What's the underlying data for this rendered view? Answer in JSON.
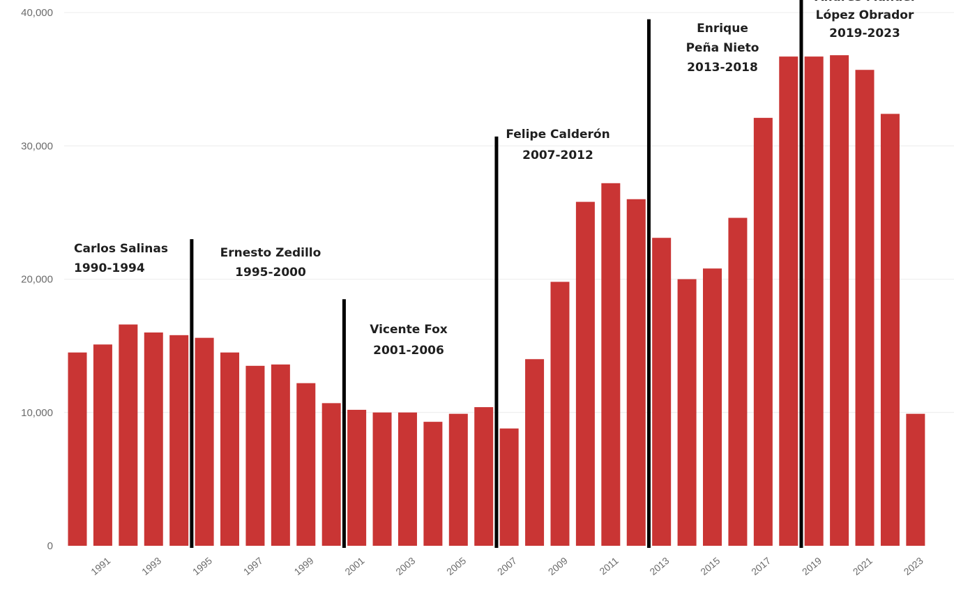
{
  "chart_data": {
    "type": "bar",
    "x": [
      1990,
      1991,
      1992,
      1993,
      1994,
      1995,
      1996,
      1997,
      1998,
      1999,
      2000,
      2001,
      2002,
      2003,
      2004,
      2005,
      2006,
      2007,
      2008,
      2009,
      2010,
      2011,
      2012,
      2013,
      2014,
      2015,
      2016,
      2017,
      2018,
      2019,
      2020,
      2021,
      2022,
      2023
    ],
    "values": [
      14500,
      15100,
      16600,
      16000,
      15800,
      15600,
      14500,
      13500,
      13600,
      12200,
      10700,
      10200,
      10000,
      10000,
      9300,
      9900,
      10400,
      8800,
      14000,
      19800,
      25800,
      27200,
      26000,
      23100,
      20000,
      20800,
      24600,
      32100,
      36700,
      36700,
      36800,
      35700,
      32400,
      9900
    ],
    "x_tick_labels": [
      "1991",
      "1993",
      "1995",
      "1997",
      "1999",
      "2001",
      "2003",
      "2005",
      "2007",
      "2009",
      "2011",
      "2013",
      "2015",
      "2017",
      "2019",
      "2021",
      "2023"
    ],
    "y_tick_labels": [
      "0",
      "10,000",
      "20,000",
      "30,000",
      "40,000"
    ],
    "y_ticks": [
      0,
      10000,
      20000,
      30000,
      40000
    ],
    "ylim": [
      0,
      40000
    ],
    "bar_color": "#c93534",
    "divider_color": "#000000",
    "grid": true,
    "annotations": [
      {
        "id": "salinas",
        "lines": [
          "Carlos Salinas",
          "1990-1994"
        ],
        "divider_after": 1994.5,
        "divider_top": 23000
      },
      {
        "id": "zedillo",
        "lines": [
          "Ernesto Zedillo",
          "1995-2000"
        ],
        "divider_after": 2000.5,
        "divider_top": 18500
      },
      {
        "id": "fox",
        "lines": [
          "Vicente Fox",
          "2001-2006"
        ],
        "divider_after": 2006.5,
        "divider_top": 30700
      },
      {
        "id": "calderon",
        "lines": [
          "Felipe Calderón",
          "2007-2012"
        ],
        "divider_after": 2012.5,
        "divider_top": 39500
      },
      {
        "id": "pena-nieto",
        "lines": [
          "Enrique",
          "Peña Nieto",
          "2013-2018"
        ],
        "divider_after": 2018.5,
        "divider_top": 41000
      },
      {
        "id": "amlo",
        "lines": [
          "Andrés Manuel",
          "López Obrador",
          "2019-2023"
        ]
      }
    ]
  }
}
